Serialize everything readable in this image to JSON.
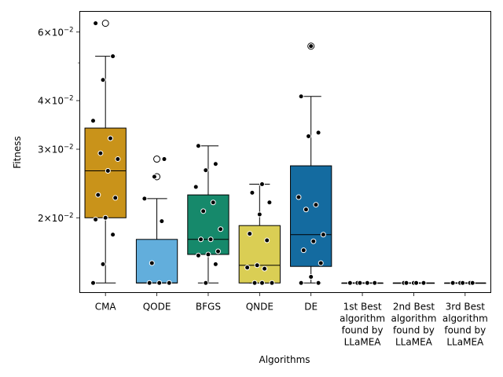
{
  "chart_data": {
    "type": "box",
    "xlabel": "Algorithms",
    "ylabel": "Fitness",
    "yscale": "log",
    "ylim": [
      0.01285,
      0.0678
    ],
    "yticks_major": [
      {
        "value": 0.02,
        "mantissa": "2",
        "exponent": "−2"
      },
      {
        "value": 0.03,
        "mantissa": "3",
        "exponent": "−2"
      },
      {
        "value": 0.04,
        "mantissa": "4",
        "exponent": "−2"
      },
      {
        "value": 0.06,
        "mantissa": "6",
        "exponent": "−2"
      }
    ],
    "yticks_minor": [
      0.05
    ],
    "grid": false,
    "categories": [
      {
        "lines": [
          "CMA"
        ],
        "color": "#C9931A",
        "box": {
          "whislo": 0.0136,
          "q1": 0.02,
          "med": 0.0264,
          "q3": 0.034,
          "whishi": 0.052
        },
        "outliers": [
          0.0632
        ],
        "points": [
          0.0136,
          0.0152,
          0.0181,
          0.0198,
          0.02,
          0.0225,
          0.0229,
          0.0264,
          0.0283,
          0.0293,
          0.032,
          0.0355,
          0.0452,
          0.052,
          0.0632
        ]
      },
      {
        "lines": [
          "QODE"
        ],
        "color": "#62AEDC",
        "box": {
          "whislo": 0.0136,
          "q1": 0.0136,
          "med": 0.0136,
          "q3": 0.0176,
          "whishi": 0.0224
        },
        "outliers": [
          0.0255,
          0.0283
        ],
        "points": [
          0.0136,
          0.0136,
          0.0136,
          0.0153,
          0.0196,
          0.0224,
          0.0255,
          0.0283
        ]
      },
      {
        "lines": [
          "BFGS"
        ],
        "color": "#16896B",
        "box": {
          "whislo": 0.0136,
          "q1": 0.0161,
          "med": 0.0176,
          "q3": 0.0229,
          "whishi": 0.0306
        },
        "outliers": [],
        "points": [
          0.0136,
          0.0152,
          0.016,
          0.0161,
          0.0164,
          0.0176,
          0.0176,
          0.0187,
          0.0208,
          0.0219,
          0.024,
          0.0265,
          0.0275,
          0.0306
        ]
      },
      {
        "lines": [
          "QNDE"
        ],
        "color": "#DACE54",
        "box": {
          "whislo": 0.0136,
          "q1": 0.0136,
          "med": 0.0151,
          "q3": 0.0191,
          "whishi": 0.0244
        },
        "outliers": [],
        "points": [
          0.0136,
          0.0136,
          0.0136,
          0.0148,
          0.0149,
          0.0151,
          0.0175,
          0.0182,
          0.0204,
          0.0219,
          0.0232,
          0.0244
        ]
      },
      {
        "lines": [
          "DE"
        ],
        "color": "#146BA0",
        "box": {
          "whislo": 0.0136,
          "q1": 0.015,
          "med": 0.0181,
          "q3": 0.0272,
          "whishi": 0.041
        },
        "outliers": [
          0.0552
        ],
        "points": [
          0.0136,
          0.0136,
          0.0141,
          0.0153,
          0.0165,
          0.0174,
          0.0181,
          0.021,
          0.0216,
          0.0226,
          0.0324,
          0.0331,
          0.041,
          0.0552
        ]
      },
      {
        "lines": [
          "1st Best",
          "algorithm",
          "found by",
          "LLaMEA"
        ],
        "color": "#F5F5F5",
        "box": {
          "whislo": 0.0136,
          "q1": 0.0136,
          "med": 0.0136,
          "q3": 0.0136,
          "whishi": 0.0136
        },
        "outliers": [],
        "points": [
          0.0136,
          0.0136,
          0.0136,
          0.0136,
          0.0136
        ]
      },
      {
        "lines": [
          "2nd Best",
          "algorithm",
          "found by",
          "LLaMEA"
        ],
        "color": "#F5F5F5",
        "box": {
          "whislo": 0.0136,
          "q1": 0.0136,
          "med": 0.0136,
          "q3": 0.0136,
          "whishi": 0.0136
        },
        "outliers": [],
        "points": [
          0.0136,
          0.0136,
          0.0136,
          0.0136,
          0.0136
        ]
      },
      {
        "lines": [
          "3rd Best",
          "algorithm",
          "found by",
          "LLaMEA"
        ],
        "color": "#F5F5F5",
        "box": {
          "whislo": 0.0136,
          "q1": 0.0136,
          "med": 0.0136,
          "q3": 0.0136,
          "whishi": 0.0136
        },
        "outliers": [],
        "points": [
          0.0136,
          0.0136,
          0.0136,
          0.0136,
          0.0136
        ]
      }
    ]
  }
}
